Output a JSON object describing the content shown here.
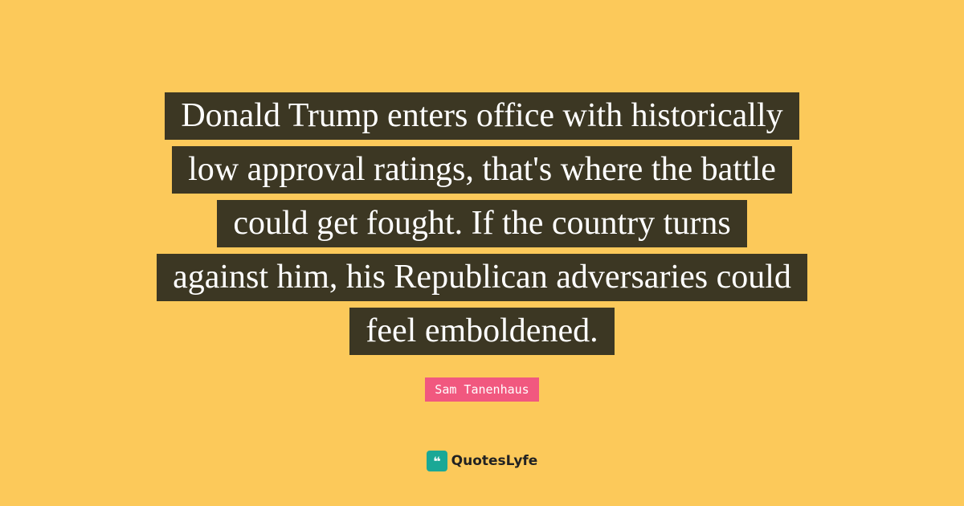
{
  "quote": {
    "lines": [
      "Donald Trump enters office with historically",
      "low approval ratings, that's where the battle",
      "could get fought. If the country turns",
      "against him, his Republican adversaries could",
      "feel emboldened."
    ],
    "author": "Sam Tanenhaus"
  },
  "brand": {
    "name": "QuotesLyfe"
  }
}
